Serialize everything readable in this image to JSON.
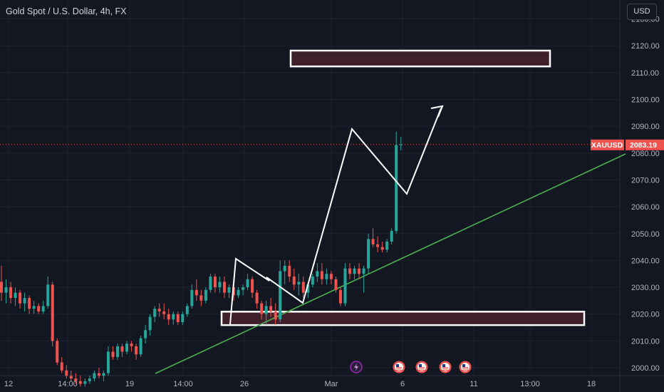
{
  "header": {
    "symbol_line": "Gold Spot / U.S. Dollar, 4h, FX"
  },
  "currency_button": "USD",
  "last_price": {
    "symbol": "XAUUSD",
    "value": "2083.19"
  },
  "colors": {
    "up": "#26a69a",
    "down": "#ef5350",
    "background": "#131722",
    "trendline": "#4caf50",
    "zone_fill": "#3e1f2a"
  },
  "events": [
    {
      "icon": "lightning-icon",
      "at": "Mar"
    },
    {
      "icon": "us-flag-icon",
      "at": "6"
    },
    {
      "icon": "us-flag-icon",
      "at": "6"
    },
    {
      "icon": "us-flag-icon",
      "at": "11"
    },
    {
      "icon": "us-flag-icon",
      "at": "11"
    }
  ],
  "chart_data": {
    "type": "candlestick",
    "title": "Gold Spot / U.S. Dollar, 4h, FX",
    "y_axis": {
      "ticks": [
        2000,
        2010,
        2020,
        2030,
        2040,
        2050,
        2060,
        2070,
        2080,
        2090,
        2100,
        2110,
        2120,
        2130
      ],
      "range": [
        1997,
        2133
      ],
      "side": "right"
    },
    "x_axis": {
      "labels": [
        "12",
        "14:00",
        "19",
        "14:00",
        "26",
        "Mar",
        "6",
        "11",
        "13:00",
        "18"
      ]
    },
    "candles": [
      {
        "o": 2032,
        "h": 2038,
        "l": 2025,
        "c": 2028
      },
      {
        "o": 2028,
        "h": 2033,
        "l": 2024,
        "c": 2030
      },
      {
        "o": 2030,
        "h": 2032,
        "l": 2024,
        "c": 2026
      },
      {
        "o": 2026,
        "h": 2030,
        "l": 2023,
        "c": 2028
      },
      {
        "o": 2028,
        "h": 2029,
        "l": 2022,
        "c": 2024
      },
      {
        "o": 2024,
        "h": 2028,
        "l": 2021,
        "c": 2026
      },
      {
        "o": 2026,
        "h": 2027,
        "l": 2020,
        "c": 2022
      },
      {
        "o": 2022,
        "h": 2025,
        "l": 2020,
        "c": 2023
      },
      {
        "o": 2023,
        "h": 2024,
        "l": 2020,
        "c": 2021
      },
      {
        "o": 2021,
        "h": 2025,
        "l": 2020,
        "c": 2023
      },
      {
        "o": 2023,
        "h": 2034,
        "l": 2022,
        "c": 2031
      },
      {
        "o": 2031,
        "h": 2032,
        "l": 2008,
        "c": 2010
      },
      {
        "o": 2010,
        "h": 2011,
        "l": 2001,
        "c": 2002
      },
      {
        "o": 2002,
        "h": 2004,
        "l": 1998,
        "c": 1999
      },
      {
        "o": 1999,
        "h": 2001,
        "l": 1996,
        "c": 1997
      },
      {
        "o": 1997,
        "h": 1999,
        "l": 1995,
        "c": 1996
      },
      {
        "o": 1996,
        "h": 1998,
        "l": 1994,
        "c": 1995
      },
      {
        "o": 1995,
        "h": 1997,
        "l": 1993,
        "c": 1994
      },
      {
        "o": 1994,
        "h": 1996,
        "l": 1993,
        "c": 1995
      },
      {
        "o": 1995,
        "h": 1997,
        "l": 1994,
        "c": 1996
      },
      {
        "o": 1996,
        "h": 1999,
        "l": 1995,
        "c": 1998
      },
      {
        "o": 1998,
        "h": 2000,
        "l": 1996,
        "c": 1997
      },
      {
        "o": 1997,
        "h": 1999,
        "l": 1995,
        "c": 1998
      },
      {
        "o": 1998,
        "h": 2008,
        "l": 1997,
        "c": 2006
      },
      {
        "o": 2006,
        "h": 2008,
        "l": 2003,
        "c": 2004
      },
      {
        "o": 2004,
        "h": 2009,
        "l": 2003,
        "c": 2008
      },
      {
        "o": 2008,
        "h": 2009,
        "l": 2004,
        "c": 2006
      },
      {
        "o": 2006,
        "h": 2010,
        "l": 2005,
        "c": 2009
      },
      {
        "o": 2009,
        "h": 2010,
        "l": 2006,
        "c": 2008
      },
      {
        "o": 2008,
        "h": 2009,
        "l": 2003,
        "c": 2005
      },
      {
        "o": 2005,
        "h": 2012,
        "l": 2004,
        "c": 2011
      },
      {
        "o": 2011,
        "h": 2016,
        "l": 2009,
        "c": 2014
      },
      {
        "o": 2014,
        "h": 2020,
        "l": 2012,
        "c": 2019
      },
      {
        "o": 2019,
        "h": 2023,
        "l": 2017,
        "c": 2022
      },
      {
        "o": 2022,
        "h": 2024,
        "l": 2019,
        "c": 2021
      },
      {
        "o": 2021,
        "h": 2024,
        "l": 2018,
        "c": 2020
      },
      {
        "o": 2020,
        "h": 2022,
        "l": 2016,
        "c": 2018
      },
      {
        "o": 2018,
        "h": 2021,
        "l": 2016,
        "c": 2020
      },
      {
        "o": 2020,
        "h": 2021,
        "l": 2016,
        "c": 2017
      },
      {
        "o": 2017,
        "h": 2021,
        "l": 2016,
        "c": 2020
      },
      {
        "o": 2020,
        "h": 2024,
        "l": 2019,
        "c": 2023
      },
      {
        "o": 2023,
        "h": 2031,
        "l": 2022,
        "c": 2029
      },
      {
        "o": 2029,
        "h": 2033,
        "l": 2025,
        "c": 2027
      },
      {
        "o": 2027,
        "h": 2029,
        "l": 2023,
        "c": 2025
      },
      {
        "o": 2025,
        "h": 2030,
        "l": 2024,
        "c": 2029
      },
      {
        "o": 2029,
        "h": 2035,
        "l": 2028,
        "c": 2034
      },
      {
        "o": 2034,
        "h": 2035,
        "l": 2028,
        "c": 2030
      },
      {
        "o": 2030,
        "h": 2034,
        "l": 2028,
        "c": 2032
      },
      {
        "o": 2032,
        "h": 2034,
        "l": 2026,
        "c": 2028
      },
      {
        "o": 2028,
        "h": 2031,
        "l": 2026,
        "c": 2030
      },
      {
        "o": 2030,
        "h": 2031,
        "l": 2025,
        "c": 2027
      },
      {
        "o": 2027,
        "h": 2030,
        "l": 2026,
        "c": 2029
      },
      {
        "o": 2029,
        "h": 2031,
        "l": 2027,
        "c": 2030
      },
      {
        "o": 2030,
        "h": 2035,
        "l": 2029,
        "c": 2033
      },
      {
        "o": 2033,
        "h": 2034,
        "l": 2026,
        "c": 2028
      },
      {
        "o": 2028,
        "h": 2029,
        "l": 2022,
        "c": 2024
      },
      {
        "o": 2024,
        "h": 2025,
        "l": 2018,
        "c": 2020
      },
      {
        "o": 2020,
        "h": 2025,
        "l": 2016,
        "c": 2023
      },
      {
        "o": 2023,
        "h": 2026,
        "l": 2019,
        "c": 2021
      },
      {
        "o": 2021,
        "h": 2024,
        "l": 2016,
        "c": 2018
      },
      {
        "o": 2018,
        "h": 2040,
        "l": 2017,
        "c": 2036
      },
      {
        "o": 2036,
        "h": 2040,
        "l": 2031,
        "c": 2038
      },
      {
        "o": 2038,
        "h": 2040,
        "l": 2032,
        "c": 2034
      },
      {
        "o": 2034,
        "h": 2037,
        "l": 2029,
        "c": 2031
      },
      {
        "o": 2031,
        "h": 2035,
        "l": 2027,
        "c": 2032
      },
      {
        "o": 2032,
        "h": 2034,
        "l": 2026,
        "c": 2028
      },
      {
        "o": 2028,
        "h": 2032,
        "l": 2026,
        "c": 2031
      },
      {
        "o": 2031,
        "h": 2035,
        "l": 2030,
        "c": 2034
      },
      {
        "o": 2034,
        "h": 2039,
        "l": 2032,
        "c": 2036
      },
      {
        "o": 2036,
        "h": 2039,
        "l": 2031,
        "c": 2033
      },
      {
        "o": 2033,
        "h": 2037,
        "l": 2031,
        "c": 2035
      },
      {
        "o": 2035,
        "h": 2036,
        "l": 2031,
        "c": 2033
      },
      {
        "o": 2033,
        "h": 2034,
        "l": 2028,
        "c": 2029
      },
      {
        "o": 2029,
        "h": 2030,
        "l": 2023,
        "c": 2024
      },
      {
        "o": 2024,
        "h": 2039,
        "l": 2023,
        "c": 2037
      },
      {
        "o": 2037,
        "h": 2039,
        "l": 2033,
        "c": 2035
      },
      {
        "o": 2035,
        "h": 2038,
        "l": 2033,
        "c": 2037
      },
      {
        "o": 2037,
        "h": 2039,
        "l": 2033,
        "c": 2035
      },
      {
        "o": 2035,
        "h": 2038,
        "l": 2028,
        "c": 2037
      },
      {
        "o": 2037,
        "h": 2050,
        "l": 2035,
        "c": 2048
      },
      {
        "o": 2048,
        "h": 2052,
        "l": 2045,
        "c": 2046
      },
      {
        "o": 2046,
        "h": 2049,
        "l": 2043,
        "c": 2045
      },
      {
        "o": 2045,
        "h": 2047,
        "l": 2043,
        "c": 2044
      },
      {
        "o": 2044,
        "h": 2048,
        "l": 2043,
        "c": 2047
      },
      {
        "o": 2047,
        "h": 2052,
        "l": 2046,
        "c": 2051
      },
      {
        "o": 2051,
        "h": 2088,
        "l": 2050,
        "c": 2083
      },
      {
        "o": 2083,
        "h": 2086,
        "l": 2081,
        "c": 2083.19
      }
    ],
    "overlays": {
      "supply_zone": {
        "from": 2112.3,
        "to": 2118.2
      },
      "demand_zone": {
        "from": 2015.9,
        "to": 2020.9
      },
      "trendline": "rising support line",
      "path_annotation": "zig-zag projection with arrow"
    },
    "last_value": 2083.19
  }
}
